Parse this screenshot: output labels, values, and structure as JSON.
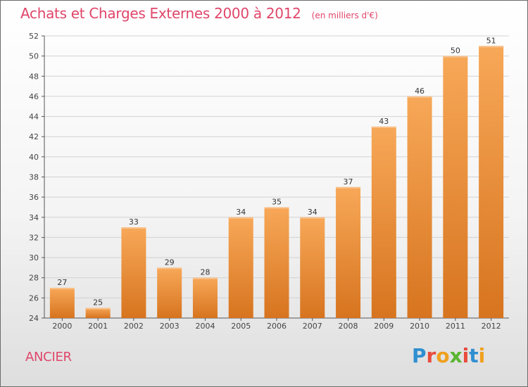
{
  "header": {
    "title": "Achats et Charges Externes 2000 à 2012",
    "unit": "(en milliers d'€)"
  },
  "footer": {
    "commune": "ANCIER",
    "brand_letters": [
      "P",
      "r",
      "o",
      "x",
      "i",
      "t",
      "i"
    ],
    "brand_colors": [
      "#2f8fd1",
      "#e84b3c",
      "#f0a01e",
      "#5bb531",
      "#e84b3c",
      "#2f8fd1",
      "#f0a01e"
    ]
  },
  "chart_data": {
    "type": "bar",
    "categories": [
      "2000",
      "2001",
      "2002",
      "2003",
      "2004",
      "2005",
      "2006",
      "2007",
      "2008",
      "2009",
      "2010",
      "2011",
      "2012"
    ],
    "values": [
      27,
      25,
      33,
      29,
      28,
      34,
      35,
      34,
      37,
      43,
      46,
      50,
      51
    ],
    "ylim": [
      24,
      52
    ],
    "yticks": [
      24,
      26,
      28,
      30,
      32,
      34,
      36,
      38,
      40,
      42,
      44,
      46,
      48,
      50,
      52
    ],
    "grid": true,
    "bar_color_top": "#f7a858",
    "bar_color_bottom": "#d7741f"
  }
}
